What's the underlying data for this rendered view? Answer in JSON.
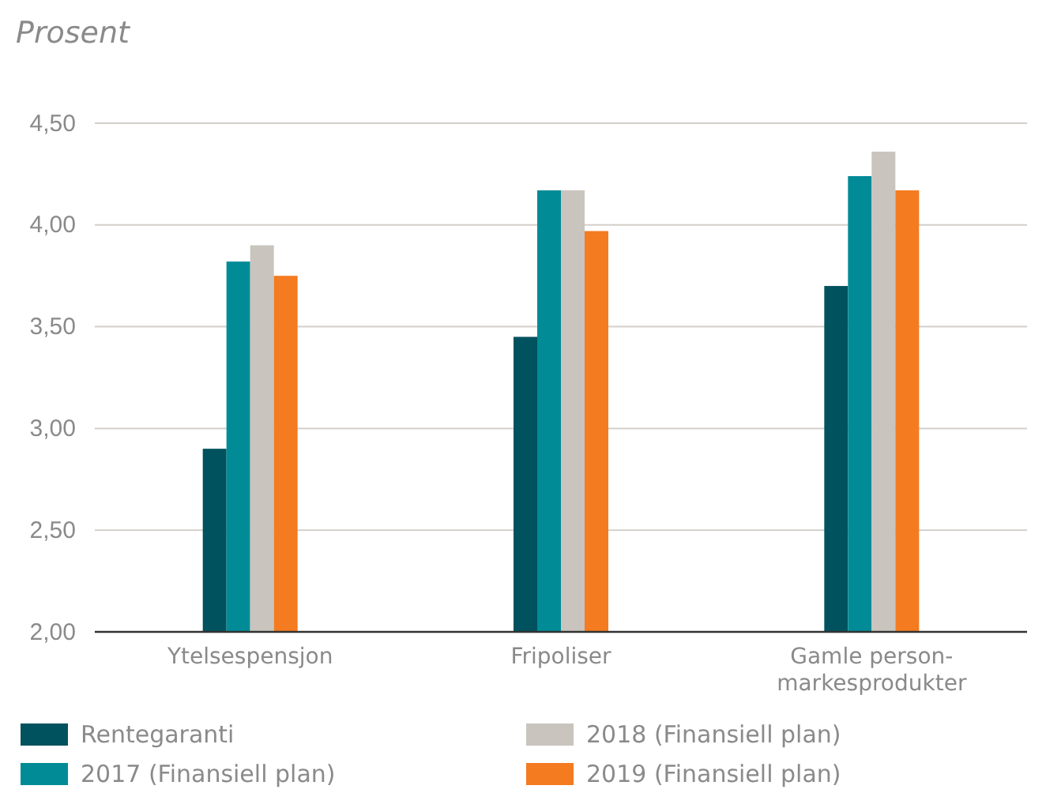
{
  "chart_data": {
    "type": "bar",
    "ylabel": "Prosent",
    "categories": [
      "Ytelsespensjon",
      "Fripoliser",
      "Gamle person-markesprodukter"
    ],
    "series": [
      {
        "name": "Rentegaranti",
        "color": "#00525e",
        "values": [
          2.9,
          3.45,
          3.7
        ]
      },
      {
        "name": "2017 (Finansiell plan)",
        "color": "#008b96",
        "values": [
          3.82,
          4.17,
          4.24
        ]
      },
      {
        "name": "2018 (Finansiell plan)",
        "color": "#c9c4bd",
        "values": [
          3.9,
          4.17,
          4.36
        ]
      },
      {
        "name": "2019 (Finansiell plan)",
        "color": "#f47b20",
        "values": [
          3.75,
          3.97,
          4.17
        ]
      }
    ],
    "ylim": [
      2,
      4.5
    ],
    "yticks": [
      {
        "value": 2,
        "label": "2,00"
      },
      {
        "value": 2.5,
        "label": "2,50"
      },
      {
        "value": 3,
        "label": "3,00"
      },
      {
        "value": 3.5,
        "label": "3,50"
      },
      {
        "value": 4,
        "label": "4,00"
      },
      {
        "value": 4.5,
        "label": "4,50"
      }
    ],
    "grid": "y",
    "legend": "bottom"
  }
}
